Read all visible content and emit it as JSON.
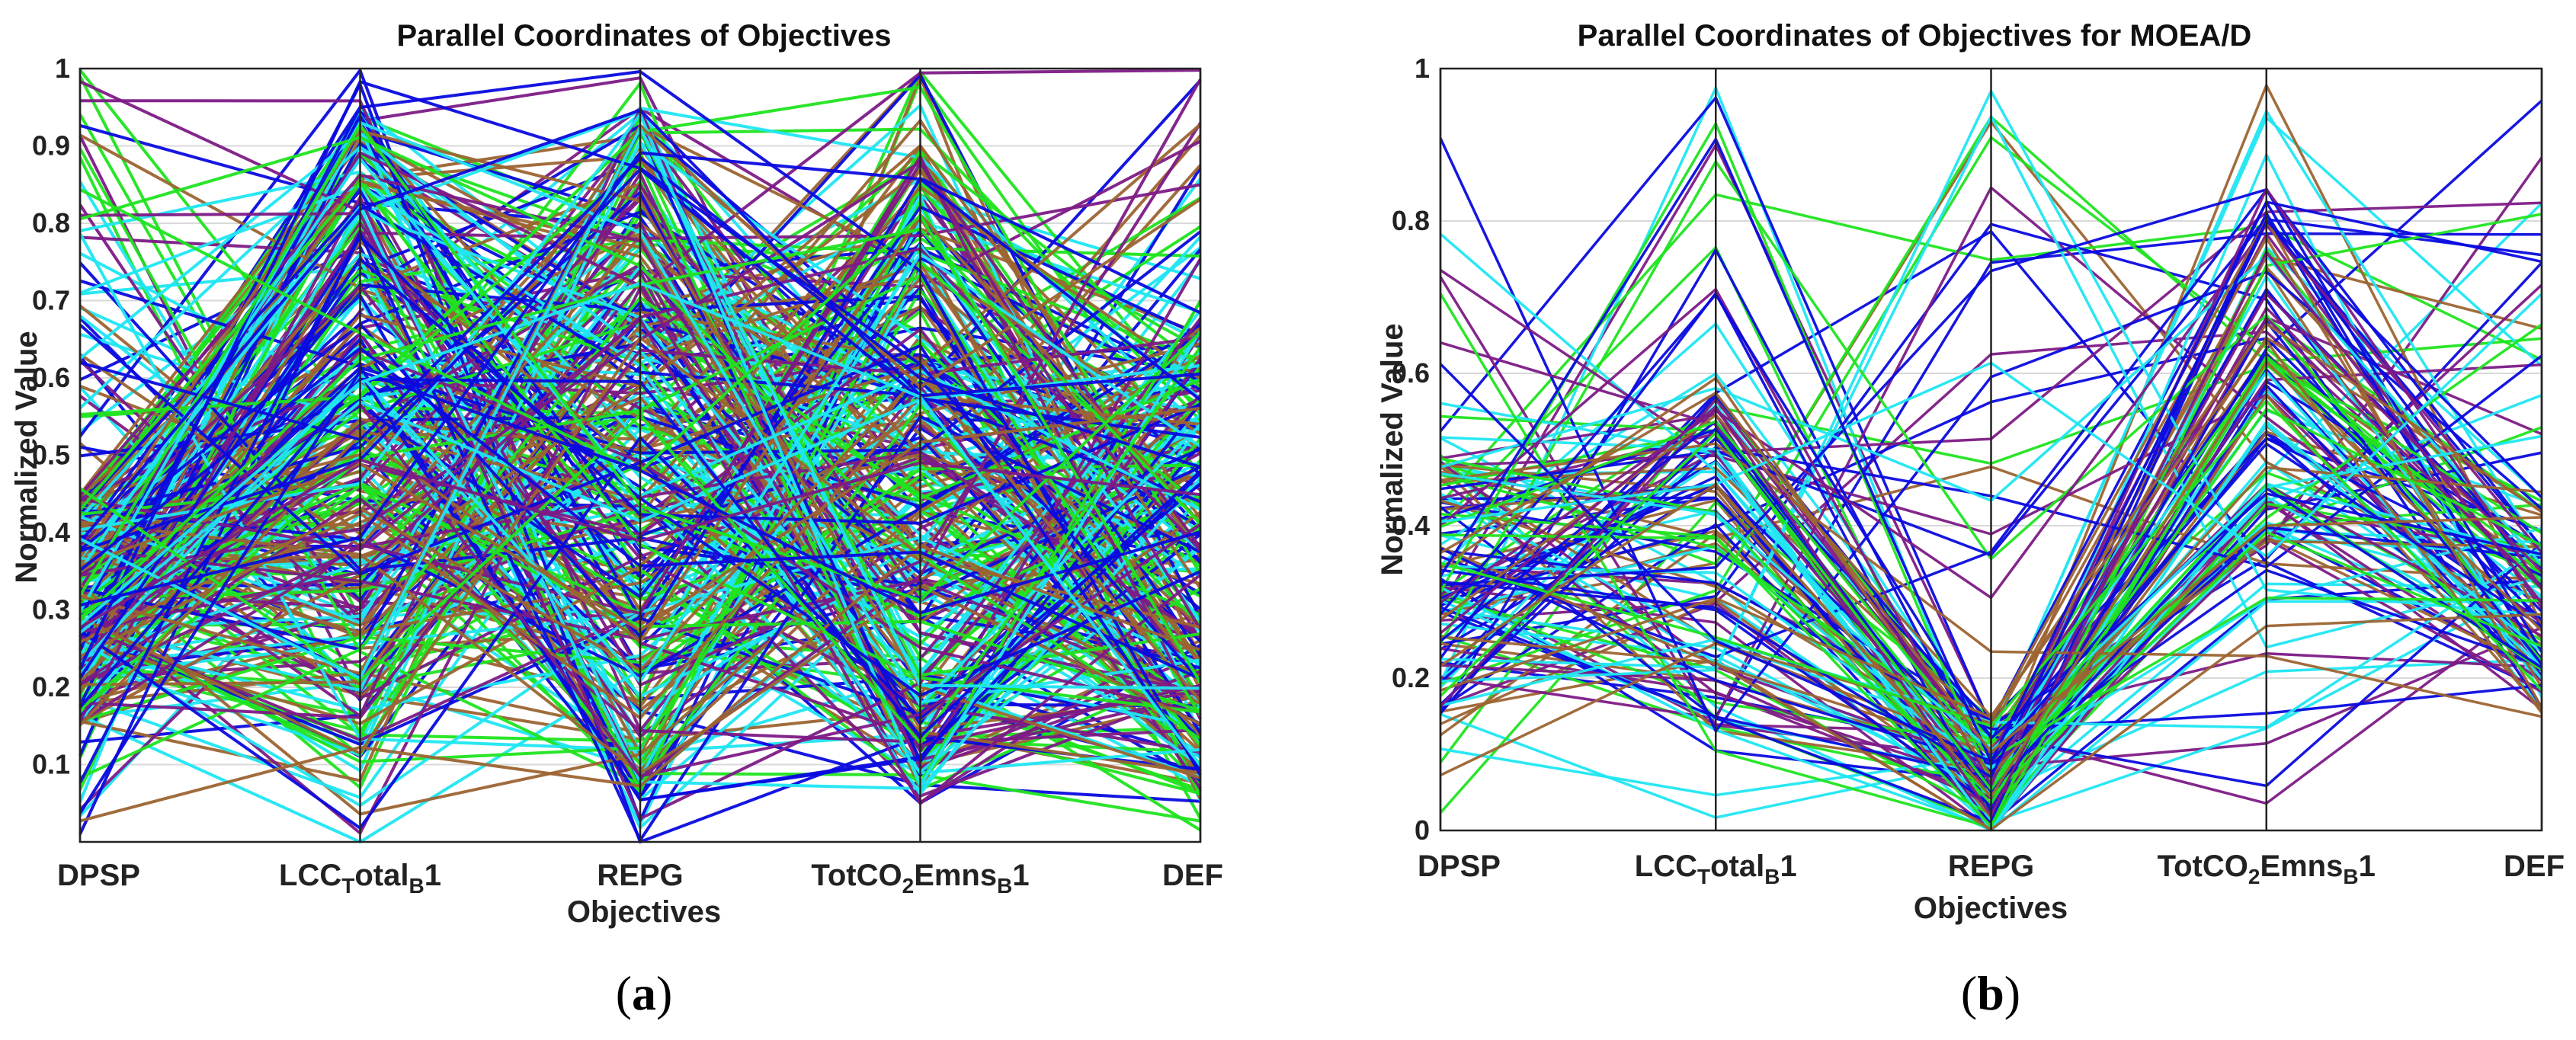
{
  "figure": {
    "panels": [
      {
        "label_open": "(",
        "label_letter": "a",
        "label_close": ")"
      },
      {
        "label_open": "(",
        "label_letter": "b",
        "label_close": ")"
      }
    ]
  },
  "chart_data": [
    {
      "type": "parallel-coordinates",
      "title": "Parallel Coordinates of Objectives",
      "xlabel": "Objectives",
      "ylabel": "Normalized Value",
      "ylim": [
        0.0,
        1.0
      ],
      "yticks": [
        "0.1",
        "0.2",
        "0.3",
        "0.4",
        "0.5",
        "0.6",
        "0.7",
        "0.8",
        "0.9",
        "1"
      ],
      "ytick_values": [
        0.1,
        0.2,
        0.3,
        0.4,
        0.5,
        0.6,
        0.7,
        0.8,
        0.9,
        1.0
      ],
      "grid": true,
      "axes": [
        {
          "base": "DPSP",
          "sub": "",
          "mid": "",
          "sub2": "",
          "end": ""
        },
        {
          "base": "LCC",
          "sub": "T",
          "mid": "otal",
          "sub2": "B",
          "end": "1"
        },
        {
          "base": "REPG",
          "sub": "",
          "mid": "",
          "sub2": "",
          "end": ""
        },
        {
          "base": "TotCO",
          "sub": "2",
          "mid": "Emns",
          "sub2": "B",
          "end": "1"
        },
        {
          "base": "DEF",
          "sub": "",
          "mid": "",
          "sub2": "",
          "end": ""
        }
      ],
      "line_colors": [
        "#0a0adf",
        "#7d1a86",
        "#9c6432",
        "#1fe41f",
        "#1fe6f2"
      ],
      "num_solutions": 340,
      "generator": {
        "seed": 11,
        "ranges": [
          [
            0.0,
            1.0
          ],
          [
            0.0,
            1.0
          ],
          [
            0.0,
            1.0
          ],
          [
            0.0,
            1.0
          ],
          [
            0.0,
            1.0
          ]
        ],
        "dense": [
          [
            0.15,
            0.45
          ],
          [
            0.1,
            0.95
          ],
          [
            0.05,
            0.95
          ],
          [
            0.05,
            0.9
          ],
          [
            0.05,
            0.7
          ]
        ]
      }
    },
    {
      "type": "parallel-coordinates",
      "title": "Parallel Coordinates of Objectives for MOEA/D",
      "xlabel": "Objectives",
      "ylabel": "Normalized Value",
      "ylim": [
        0.0,
        1.0
      ],
      "yticks": [
        "0",
        "0.2",
        "0.4",
        "0.6",
        "0.8",
        "1"
      ],
      "ytick_values": [
        0.0,
        0.2,
        0.4,
        0.6,
        0.8,
        1.0
      ],
      "grid": true,
      "axes": [
        {
          "base": "DPSP",
          "sub": "",
          "mid": "",
          "sub2": "",
          "end": ""
        },
        {
          "base": "LCC",
          "sub": "T",
          "mid": "otal",
          "sub2": "B",
          "end": "1"
        },
        {
          "base": "REPG",
          "sub": "",
          "mid": "",
          "sub2": "",
          "end": ""
        },
        {
          "base": "TotCO",
          "sub": "2",
          "mid": "Emns",
          "sub2": "B",
          "end": "1"
        },
        {
          "base": "DEF",
          "sub": "",
          "mid": "",
          "sub2": "",
          "end": ""
        }
      ],
      "line_colors": [
        "#0a0adf",
        "#7d1a86",
        "#9c6432",
        "#1fe41f",
        "#1fe6f2"
      ],
      "num_solutions": 140,
      "generator": {
        "seed": 29,
        "ranges": [
          [
            0.0,
            1.0
          ],
          [
            0.0,
            1.0
          ],
          [
            0.0,
            1.0
          ],
          [
            0.0,
            1.0
          ],
          [
            0.0,
            1.0
          ]
        ],
        "dense": [
          [
            0.15,
            0.5
          ],
          [
            0.1,
            0.6
          ],
          [
            0.0,
            0.15
          ],
          [
            0.3,
            0.85
          ],
          [
            0.15,
            0.45
          ]
        ]
      }
    }
  ]
}
